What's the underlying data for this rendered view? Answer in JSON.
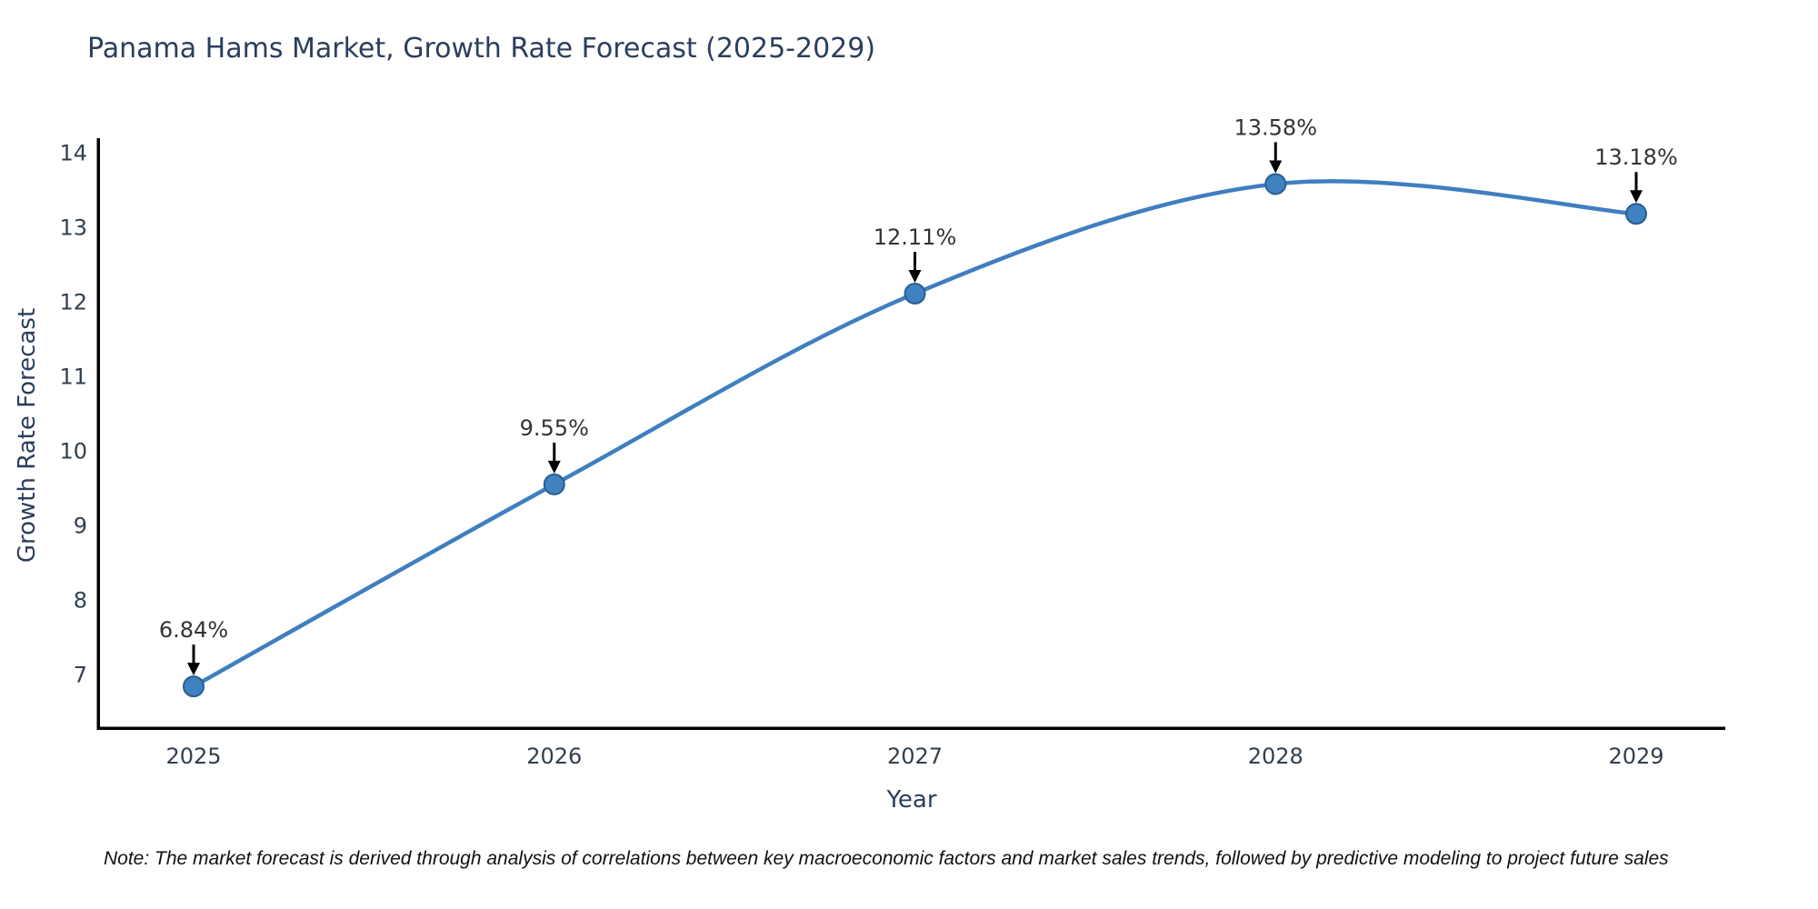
{
  "figure": {
    "note": "Note: The market forecast is derived through analysis of correlations between key macroeconomic factors and market sales trends, followed by predictive modeling to project future sales"
  },
  "chart_data": {
    "type": "line",
    "title": "Panama Hams Market, Growth Rate Forecast (2025-2029)",
    "xlabel": "Year",
    "ylabel": "Growth Rate Forecast",
    "categories": [
      "2025",
      "2026",
      "2027",
      "2028",
      "2029"
    ],
    "series": [
      {
        "name": "Growth Rate Forecast",
        "values": [
          6.84,
          9.55,
          12.11,
          13.58,
          13.18
        ]
      }
    ],
    "point_labels": [
      "6.84%",
      "9.55%",
      "12.11%",
      "13.58%",
      "13.18%"
    ],
    "y_ticks": [
      7,
      8,
      9,
      10,
      11,
      12,
      13,
      14
    ],
    "ylim": [
      6.3,
      14.2
    ],
    "grid": false,
    "legend": "none",
    "line_shape": "spline",
    "marker": "circle",
    "annotation_arrows": true,
    "colors": {
      "line": "#3f7fbf",
      "marker_fill": "#3f82c0",
      "marker_edge": "#295e91",
      "axis_line": "#000000",
      "title_text": "#2c3e5d",
      "axis_title_text": "#2c3e5d",
      "tick_text": "#333f4d",
      "annotation_text": "#333333",
      "arrow": "#000000",
      "note_text": "#111111"
    }
  }
}
